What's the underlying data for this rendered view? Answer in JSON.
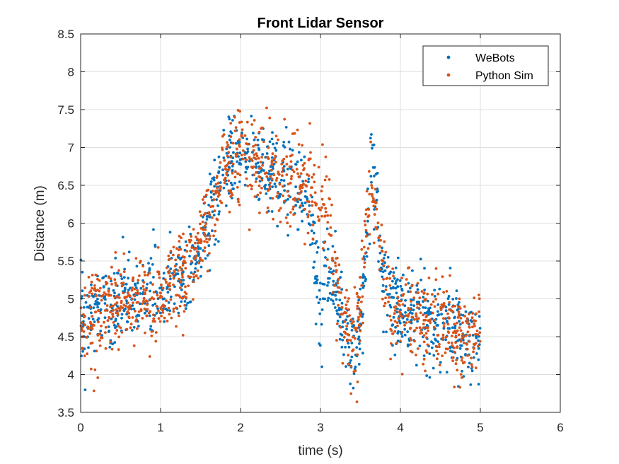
{
  "chart_data": {
    "type": "scatter",
    "title": "Front Lidar Sensor",
    "xlabel": "time (s)",
    "ylabel": "Distance (m)",
    "xlim": [
      0,
      6
    ],
    "ylim": [
      3.5,
      8.5
    ],
    "xticks": [
      "0",
      "1",
      "2",
      "3",
      "4",
      "5",
      "6"
    ],
    "yticks": [
      "3.5",
      "4",
      "4.5",
      "5",
      "5.5",
      "6",
      "6.5",
      "7",
      "7.5",
      "8",
      "8.5"
    ],
    "grid": true,
    "legend_position": "top-right",
    "series": [
      {
        "name": "WeBots",
        "color": "#0072BD",
        "trend": [
          [
            0,
            4.75
          ],
          [
            0.5,
            4.95
          ],
          [
            1.0,
            5.05
          ],
          [
            1.4,
            5.35
          ],
          [
            1.6,
            6.0
          ],
          [
            1.8,
            6.7
          ],
          [
            2.0,
            6.85
          ],
          [
            2.3,
            6.75
          ],
          [
            2.6,
            6.55
          ],
          [
            2.8,
            6.35
          ],
          [
            2.9,
            6.0
          ],
          [
            3.0,
            4.8
          ],
          [
            3.1,
            5.4
          ],
          [
            3.2,
            5.2
          ],
          [
            3.3,
            4.6
          ],
          [
            3.4,
            4.3
          ],
          [
            3.5,
            4.6
          ],
          [
            3.6,
            6.2
          ],
          [
            3.65,
            6.8
          ],
          [
            3.7,
            6.2
          ],
          [
            3.8,
            5.1
          ],
          [
            4.0,
            4.85
          ],
          [
            4.5,
            4.65
          ],
          [
            5.0,
            4.45
          ]
        ],
        "spread": 0.28,
        "points_per_unit": 220
      },
      {
        "name": "Python Sim",
        "color": "#D95319",
        "trend": [
          [
            0,
            4.7
          ],
          [
            0.5,
            4.95
          ],
          [
            1.0,
            5.05
          ],
          [
            1.4,
            5.35
          ],
          [
            1.6,
            6.0
          ],
          [
            1.8,
            6.75
          ],
          [
            2.0,
            6.85
          ],
          [
            2.3,
            6.75
          ],
          [
            2.6,
            6.6
          ],
          [
            2.9,
            6.35
          ],
          [
            3.05,
            6.2
          ],
          [
            3.15,
            5.7
          ],
          [
            3.25,
            5.0
          ],
          [
            3.4,
            4.3
          ],
          [
            3.5,
            4.9
          ],
          [
            3.6,
            6.4
          ],
          [
            3.65,
            6.6
          ],
          [
            3.75,
            5.5
          ],
          [
            3.85,
            4.95
          ],
          [
            4.0,
            4.8
          ],
          [
            4.5,
            4.6
          ],
          [
            5.0,
            4.4
          ]
        ],
        "spread": 0.3,
        "points_per_unit": 230
      }
    ]
  }
}
